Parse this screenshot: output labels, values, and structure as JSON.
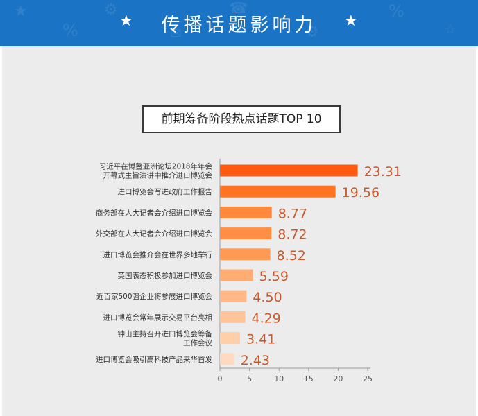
{
  "header": {
    "title": "传播话题影响力",
    "star_left": "★",
    "star_right": "★"
  },
  "colors": {
    "header_bg": "#1a73c4",
    "panel_bg": "#ececec",
    "value_text": "#c8582a",
    "bar_colors": [
      "#ff5a12",
      "#ff7322",
      "#ff8a3d",
      "#ff8f45",
      "#ff9a54",
      "#ffad73",
      "#ffb886",
      "#ffc49a",
      "#ffcfaa",
      "#ffdabe"
    ]
  },
  "chart_data": {
    "type": "bar",
    "orientation": "horizontal",
    "title": "前期筹备阶段热点话题TOP 10",
    "categories": [
      [
        "习近平在博鳌亚洲论坛2018年年会",
        "开幕式主旨演讲中推介进口博览会"
      ],
      [
        "进口博览会写进政府工作报告"
      ],
      [
        "商务部在人大记者会介绍进口博览会"
      ],
      [
        "外交部在人大记者会介绍进口博览会"
      ],
      [
        "进口博览会推介会在世界多地举行"
      ],
      [
        "英国表态积极参加进口博览会"
      ],
      [
        "近百家500强企业将参展进口博览会"
      ],
      [
        "进口博览会常年展示交易平台亮相"
      ],
      [
        "钟山主持召开进口博览会筹备",
        "工作会议"
      ],
      [
        "进口博览会吸引高科技产品来华首发"
      ]
    ],
    "values": [
      23.31,
      19.56,
      8.77,
      8.72,
      8.52,
      5.59,
      4.5,
      4.29,
      3.41,
      2.43
    ],
    "value_labels": [
      "23.31",
      "19.56",
      "8.77",
      "8.72",
      "8.52",
      "5.59",
      "4.50",
      "4.29",
      "3.41",
      "2.43"
    ],
    "x_ticks": [
      "0",
      "5",
      "10",
      "15",
      "20",
      "25"
    ],
    "xlim": [
      0,
      25
    ],
    "grid": false,
    "legend": "none"
  }
}
